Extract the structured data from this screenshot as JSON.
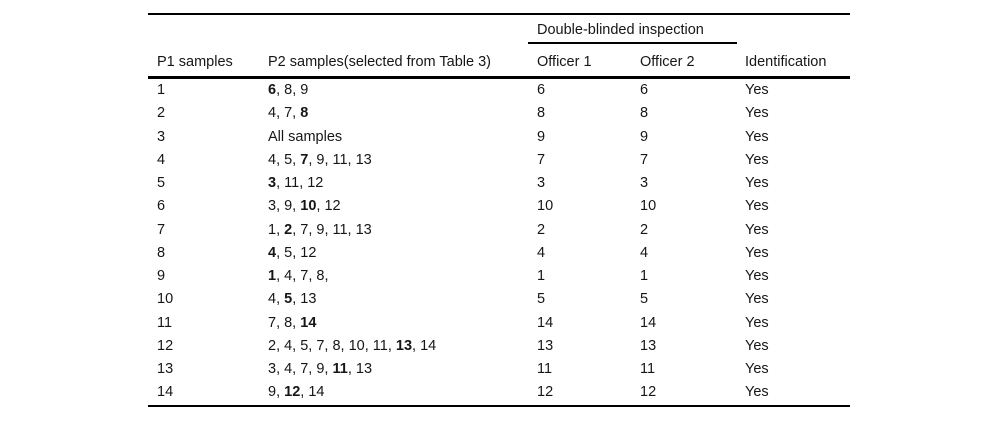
{
  "page": {
    "background": "#ffffff",
    "text_color": "#161616",
    "rule_color": "#000000"
  },
  "table": {
    "spanner": {
      "label": "Double-blinded inspection"
    },
    "columns": {
      "p1": "P1 samples",
      "p2": "P2 samples(selected from Table 3)",
      "officer1": "Officer 1",
      "officer2": "Officer 2",
      "identification": "Identification"
    },
    "rows": [
      {
        "p1": "1",
        "p2": [
          {
            "t": "6",
            "b": true
          },
          {
            "t": ", 8, 9",
            "b": false
          }
        ],
        "officer1": "6",
        "officer2": "6",
        "identification": "Yes"
      },
      {
        "p1": "2",
        "p2": [
          {
            "t": "4, 7, ",
            "b": false
          },
          {
            "t": "8",
            "b": true
          }
        ],
        "officer1": "8",
        "officer2": "8",
        "identification": "Yes"
      },
      {
        "p1": "3",
        "p2": [
          {
            "t": "All samples",
            "b": false
          }
        ],
        "officer1": "9",
        "officer2": "9",
        "identification": "Yes"
      },
      {
        "p1": "4",
        "p2": [
          {
            "t": "4, 5, ",
            "b": false
          },
          {
            "t": "7",
            "b": true
          },
          {
            "t": ", 9, 11, 13",
            "b": false
          }
        ],
        "officer1": "7",
        "officer2": "7",
        "identification": "Yes"
      },
      {
        "p1": "5",
        "p2": [
          {
            "t": "3",
            "b": true
          },
          {
            "t": ", 11, 12",
            "b": false
          }
        ],
        "officer1": "3",
        "officer2": "3",
        "identification": "Yes"
      },
      {
        "p1": "6",
        "p2": [
          {
            "t": "3, 9, ",
            "b": false
          },
          {
            "t": "10",
            "b": true
          },
          {
            "t": ", 12",
            "b": false
          }
        ],
        "officer1": "10",
        "officer2": "10",
        "identification": "Yes"
      },
      {
        "p1": "7",
        "p2": [
          {
            "t": "1, ",
            "b": false
          },
          {
            "t": "2",
            "b": true
          },
          {
            "t": ", 7, 9, 11, 13",
            "b": false
          }
        ],
        "officer1": "2",
        "officer2": "2",
        "identification": "Yes"
      },
      {
        "p1": "8",
        "p2": [
          {
            "t": "4",
            "b": true
          },
          {
            "t": ", 5, 12",
            "b": false
          }
        ],
        "officer1": "4",
        "officer2": "4",
        "identification": "Yes"
      },
      {
        "p1": "9",
        "p2": [
          {
            "t": "1",
            "b": true
          },
          {
            "t": ", 4, 7, 8,",
            "b": false
          }
        ],
        "officer1": "1",
        "officer2": "1",
        "identification": "Yes"
      },
      {
        "p1": "10",
        "p2": [
          {
            "t": "4, ",
            "b": false
          },
          {
            "t": "5",
            "b": true
          },
          {
            "t": ", 13",
            "b": false
          }
        ],
        "officer1": "5",
        "officer2": "5",
        "identification": "Yes"
      },
      {
        "p1": "11",
        "p2": [
          {
            "t": "7, 8, ",
            "b": false
          },
          {
            "t": "14",
            "b": true
          }
        ],
        "officer1": "14",
        "officer2": "14",
        "identification": "Yes"
      },
      {
        "p1": "12",
        "p2": [
          {
            "t": "2, 4, 5, 7, 8, 10, 11, ",
            "b": false
          },
          {
            "t": "13",
            "b": true
          },
          {
            "t": ", 14",
            "b": false
          }
        ],
        "officer1": "13",
        "officer2": "13",
        "identification": "Yes"
      },
      {
        "p1": "13",
        "p2": [
          {
            "t": "3, 4, 7, 9, ",
            "b": false
          },
          {
            "t": "11",
            "b": true
          },
          {
            "t": ", 13",
            "b": false
          }
        ],
        "officer1": "11",
        "officer2": "11",
        "identification": "Yes"
      },
      {
        "p1": "14",
        "p2": [
          {
            "t": "9, ",
            "b": false
          },
          {
            "t": "12",
            "b": true
          },
          {
            "t": ", 14",
            "b": false
          }
        ],
        "officer1": "12",
        "officer2": "12",
        "identification": "Yes"
      }
    ]
  }
}
